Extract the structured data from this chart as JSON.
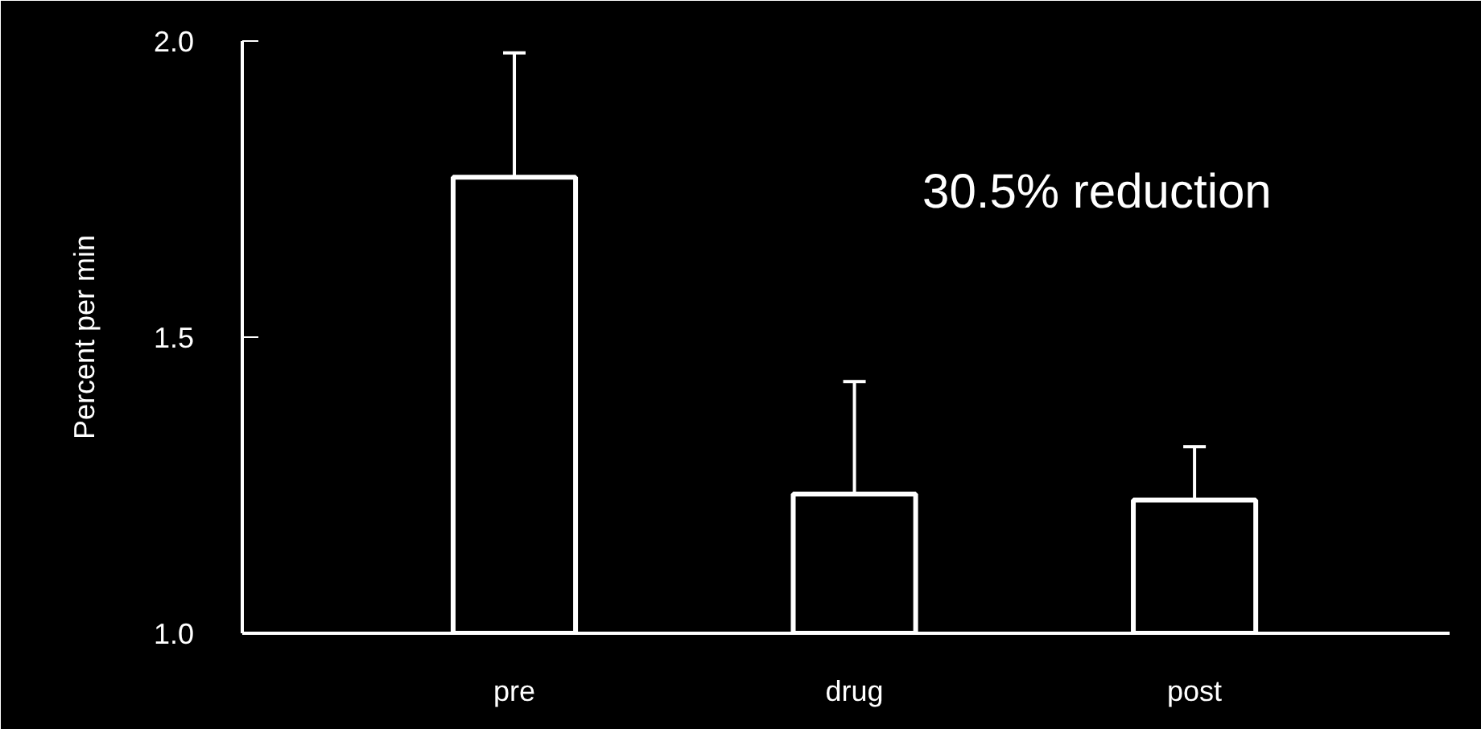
{
  "chart_data": {
    "type": "bar",
    "ylabel": "Percent per min",
    "categories": [
      "pre",
      "drug",
      "post"
    ],
    "values": [
      1.77,
      1.235,
      1.225
    ],
    "errors": [
      [
        1.77,
        1.98
      ],
      [
        1.235,
        1.425
      ],
      [
        1.225,
        1.315
      ]
    ],
    "color": "#ffffff",
    "ylim": [
      1.0,
      2.0
    ],
    "yticks": [
      {
        "value": 1.0,
        "label": "1.0"
      },
      {
        "value": 1.5,
        "label": "1.5"
      },
      {
        "value": 2.0,
        "label": "2.0"
      }
    ],
    "annotations": [
      "30.5% reduction"
    ],
    "grid": false
  }
}
